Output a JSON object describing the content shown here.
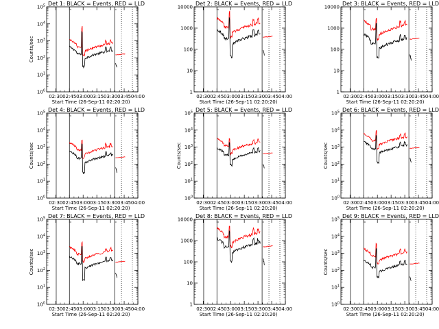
{
  "figure": {
    "title_template": "{det} BLACK = Events, RED = LLD",
    "xlabel": "Start Time (26-Sep-11 02:20:20)",
    "ylabel": "Counts/sec",
    "x_tick_labels": [
      "02:30",
      "02:45",
      "03:00",
      "03:15",
      "03:30",
      "03:45",
      "04:00"
    ],
    "colors": {
      "events": "#000000",
      "lld": "#ff0000",
      "axes": "#000000",
      "background": "#ffffff"
    }
  },
  "chart_data": [
    {
      "type": "line",
      "title": "Det 1: BLACK = Events, RED = LLD",
      "scale": "log",
      "ylim": [
        1,
        100000
      ],
      "y_tick_labels": [
        "10^0",
        "10^1",
        "10^2",
        "10^3",
        "10^4",
        "10^5"
      ],
      "xlabel": "Start Time (26-Sep-11 02:20:20)",
      "ylabel": "Counts/sec",
      "x_range_minutes": [
        "02:20",
        "04:00"
      ],
      "lld_level": 450,
      "events_level": 170,
      "spike": 6500,
      "dip": 30,
      "series": [
        {
          "name": "BLACK = Events"
        },
        {
          "name": "RED = LLD"
        }
      ]
    },
    {
      "type": "line",
      "title": "Det 2: BLACK = Events, RED = LLD",
      "scale": "log",
      "ylim": [
        1,
        10000
      ],
      "y_tick_labels": [
        "1",
        "10",
        "100",
        "1000",
        "10000"
      ],
      "xlabel": "Start Time (26-Sep-11 02:20:20)",
      "ylabel": "",
      "x_range_minutes": [
        "02:20",
        "04:00"
      ],
      "lld_level": 1100,
      "events_level": 330,
      "spike": 6000,
      "dip": 45,
      "series": [
        {
          "name": "BLACK = Events"
        },
        {
          "name": "RED = LLD"
        }
      ]
    },
    {
      "type": "line",
      "title": "Det 3: BLACK = Events, RED = LLD",
      "scale": "log",
      "ylim": [
        1,
        10000
      ],
      "y_tick_labels": [
        "1",
        "10",
        "100",
        "1000",
        "10000"
      ],
      "xlabel": "Start Time (26-Sep-11 02:20:20)",
      "ylabel": "",
      "x_range_minutes": [
        "02:20",
        "04:00"
      ],
      "lld_level": 900,
      "events_level": 200,
      "spike": 3000,
      "dip": 40,
      "series": [
        {
          "name": "BLACK = Events"
        },
        {
          "name": "RED = LLD"
        }
      ]
    },
    {
      "type": "line",
      "title": "Det 4: BLACK = Events, RED = LLD",
      "scale": "log",
      "ylim": [
        1,
        100000
      ],
      "y_tick_labels": [
        "10^0",
        "10^1",
        "10^2",
        "10^3",
        "10^4",
        "10^5"
      ],
      "xlabel": "Start Time (26-Sep-11 02:20:20)",
      "ylabel": "Counts/sec",
      "x_range_minutes": [
        "02:20",
        "04:00"
      ],
      "lld_level": 700,
      "events_level": 220,
      "spike": 2800,
      "dip": 30,
      "series": [
        {
          "name": "BLACK = Events"
        },
        {
          "name": "RED = LLD"
        }
      ]
    },
    {
      "type": "line",
      "title": "Det 5: BLACK = Events, RED = LLD",
      "scale": "log",
      "ylim": [
        1,
        100000
      ],
      "y_tick_labels": [
        "10^0",
        "10^1",
        "10^2",
        "10^3",
        "10^4",
        "10^5"
      ],
      "xlabel": "Start Time (26-Sep-11 02:20:20)",
      "ylabel": "Counts/sec",
      "x_range_minutes": [
        "02:20",
        "04:00"
      ],
      "lld_level": 1200,
      "events_level": 350,
      "spike": 3500,
      "dip": 90,
      "series": [
        {
          "name": "BLACK = Events"
        },
        {
          "name": "RED = LLD"
        }
      ]
    },
    {
      "type": "line",
      "title": "Det 6: BLACK = Events, RED = LLD",
      "scale": "log",
      "ylim": [
        1,
        100000
      ],
      "y_tick_labels": [
        "10^0",
        "10^1",
        "10^2",
        "10^3",
        "10^4",
        "10^5"
      ],
      "xlabel": "Start Time (26-Sep-11 02:20:20)",
      "ylabel": "Counts/sec",
      "x_range_minutes": [
        "02:20",
        "04:00"
      ],
      "lld_level": 2500,
      "events_level": 800,
      "spike": 9000,
      "dip": 120,
      "series": [
        {
          "name": "BLACK = Events"
        },
        {
          "name": "RED = LLD"
        }
      ]
    },
    {
      "type": "line",
      "title": "Det 7: BLACK = Events, RED = LLD",
      "scale": "log",
      "ylim": [
        1,
        100000
      ],
      "y_tick_labels": [
        "10^0",
        "10^1",
        "10^2",
        "10^3",
        "10^4",
        "10^5"
      ],
      "xlabel": "Start Time (26-Sep-11 02:20:20)",
      "ylabel": "Counts/sec",
      "x_range_minutes": [
        "02:20",
        "04:00"
      ],
      "lld_level": 900,
      "events_level": 250,
      "spike": 4500,
      "dip": 25,
      "series": [
        {
          "name": "BLACK = Events"
        },
        {
          "name": "RED = LLD"
        }
      ]
    },
    {
      "type": "line",
      "title": "Det 8: BLACK = Events, RED = LLD",
      "scale": "log",
      "ylim": [
        1,
        10000
      ],
      "y_tick_labels": [
        "1",
        "10",
        "100",
        "1000",
        "10000"
      ],
      "xlabel": "Start Time (26-Sep-11 02:20:20)",
      "ylabel": "",
      "x_range_minutes": [
        "02:20",
        "04:00"
      ],
      "lld_level": 1500,
      "events_level": 500,
      "spike": 5000,
      "dip": 100,
      "series": [
        {
          "name": "BLACK = Events"
        },
        {
          "name": "RED = LLD"
        }
      ]
    },
    {
      "type": "line",
      "title": "Det 9: BLACK = Events, RED = LLD",
      "scale": "log",
      "ylim": [
        1,
        100000
      ],
      "y_tick_labels": [
        "10^0",
        "10^1",
        "10^2",
        "10^3",
        "10^4",
        "10^5"
      ],
      "xlabel": "Start Time (26-Sep-11 02:20:20)",
      "ylabel": "Counts/sec",
      "x_range_minutes": [
        "02:20",
        "04:00"
      ],
      "lld_level": 700,
      "events_level": 150,
      "spike": 4000,
      "dip": 40,
      "series": [
        {
          "name": "BLACK = Events"
        },
        {
          "name": "RED = LLD"
        }
      ]
    }
  ]
}
